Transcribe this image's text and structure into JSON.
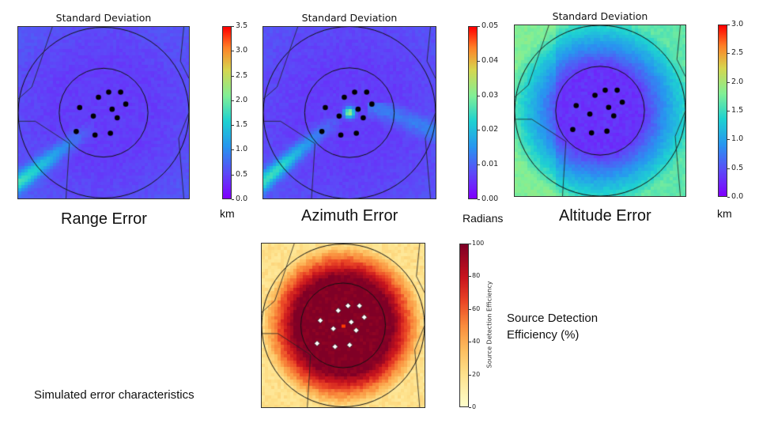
{
  "caption": "Simulated error characteristics",
  "chart_data": [
    {
      "type": "heatmap",
      "id": "range",
      "title": "Standard Deviation",
      "label": "Range Error",
      "unit": "km",
      "colormap": "rainbow",
      "vmin": 0,
      "vmax": 3.5,
      "ticks": [
        "0.0",
        "0.5",
        "1.0",
        "1.5",
        "2.0",
        "2.5",
        "3.0",
        "3.5"
      ],
      "background_level": 0.12,
      "southwest_streak_level": 0.35,
      "center_peak_level": 0.0,
      "stations": 11
    },
    {
      "type": "heatmap",
      "id": "azimuth",
      "title": "Standard Deviation",
      "label": "Azimuth Error",
      "unit": "Radians",
      "colormap": "rainbow",
      "vmin": 0,
      "vmax": 0.05,
      "ticks": [
        "0.00",
        "0.01",
        "0.02",
        "0.03",
        "0.04",
        "0.05"
      ],
      "background_level": 0.12,
      "southwest_streak_level": 0.35,
      "center_peak_level": 0.55,
      "stations": 11
    },
    {
      "type": "heatmap",
      "id": "altitude",
      "title": "Standard Deviation",
      "label": "Altitude Error",
      "unit": "km",
      "colormap": "rainbow",
      "vmin": 0,
      "vmax": 3.0,
      "ticks": [
        "0.0",
        "0.5",
        "1.0",
        "1.5",
        "2.0",
        "2.5",
        "3.0"
      ],
      "background_level": 0.1,
      "outer_ring_level": 0.45,
      "stations": 11
    },
    {
      "type": "heatmap",
      "id": "detection",
      "title": "",
      "label": "Source Detection Efficiency (%)",
      "colorbar_label": "Source Detection Efficiency",
      "label_lines": [
        "Source Detection",
        "Efficiency (%)"
      ],
      "colormap": "YlOrRd",
      "vmin": 0,
      "vmax": 100,
      "ticks": [
        "0",
        "20",
        "40",
        "60",
        "80",
        "100"
      ],
      "center_level": 100,
      "edge_level": 20,
      "stations": 11
    }
  ],
  "colors": {
    "station": "#000000",
    "detection_station": "#ffffff",
    "detection_center": "#ff3a00"
  }
}
